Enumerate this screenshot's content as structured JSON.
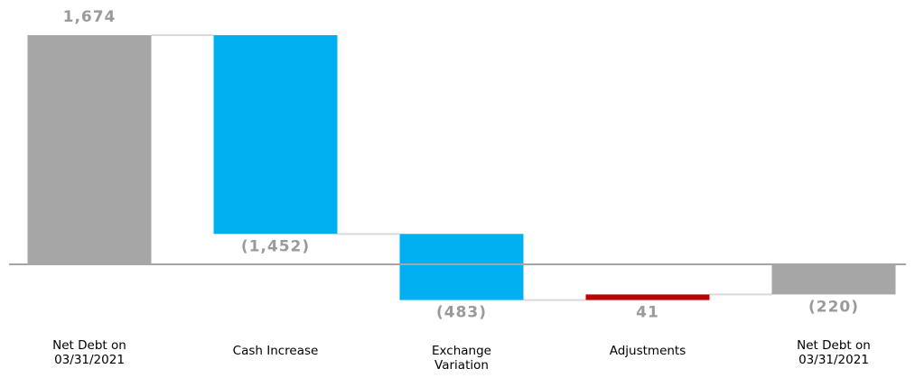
{
  "chart_data": {
    "type": "bar",
    "subtype": "waterfall",
    "title": "",
    "xlabel": "",
    "ylabel": "",
    "grid": false,
    "legend": "none",
    "categories": [
      [
        "Net Debt on",
        "03/31/2021"
      ],
      [
        "Cash Increase"
      ],
      [
        "Exchange",
        "Variation"
      ],
      [
        "Adjustments"
      ],
      [
        "Net Debt on",
        "03/31/2021"
      ]
    ],
    "values": [
      1674,
      -1452,
      -483,
      41,
      -220
    ],
    "kinds": [
      "total",
      "delta",
      "delta",
      "delta",
      "total"
    ],
    "value_labels": [
      "1,674",
      "(1,452)",
      "(483)",
      "41",
      "(220)"
    ],
    "colors": [
      "#a6a6a6",
      "#00b0f0",
      "#00b0f0",
      "#c00000",
      "#a6a6a6"
    ],
    "connector_color": "#d9d9d9",
    "axis_color": "#a6a6a6"
  }
}
